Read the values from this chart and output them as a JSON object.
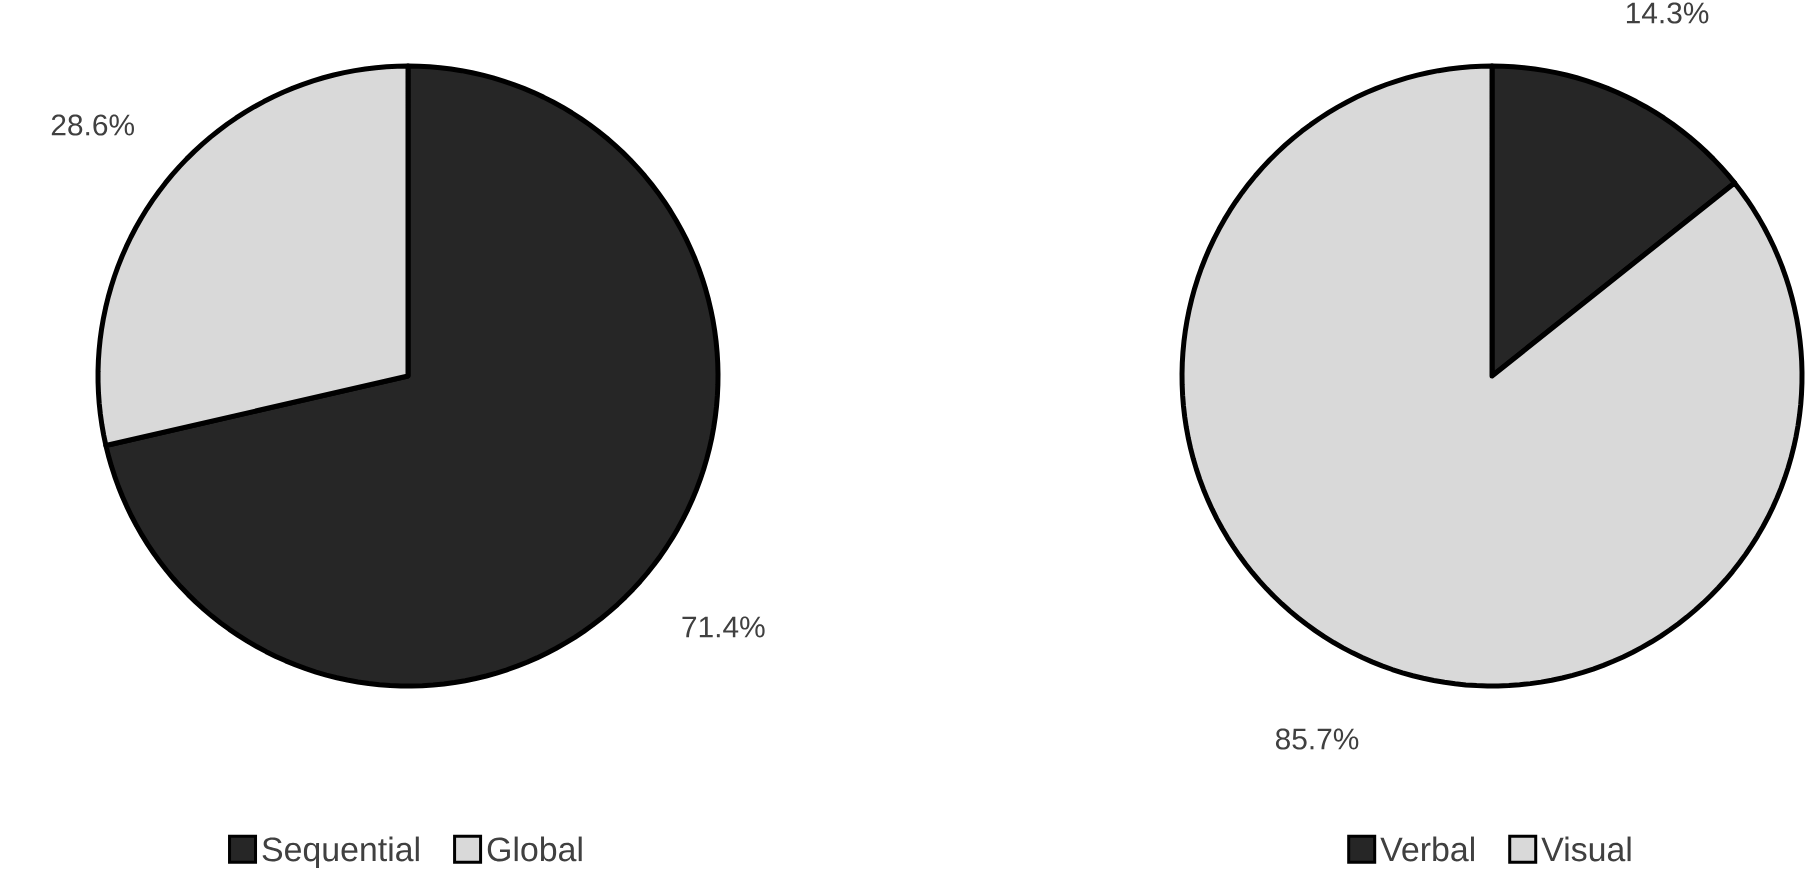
{
  "chart_data": [
    {
      "type": "pie",
      "categories": [
        "Sequential",
        "Global"
      ],
      "values": [
        71.4,
        28.6
      ],
      "colors": [
        "#262626",
        "#d9d9d9"
      ],
      "value_labels": [
        "71.4%",
        "28.6%"
      ],
      "legend": "bottom"
    },
    {
      "type": "pie",
      "categories": [
        "Verbal",
        "Visual"
      ],
      "values": [
        14.3,
        85.7
      ],
      "colors": [
        "#262626",
        "#d9d9d9"
      ],
      "value_labels": [
        "14.3%",
        "85.7%"
      ],
      "legend": "bottom"
    }
  ]
}
